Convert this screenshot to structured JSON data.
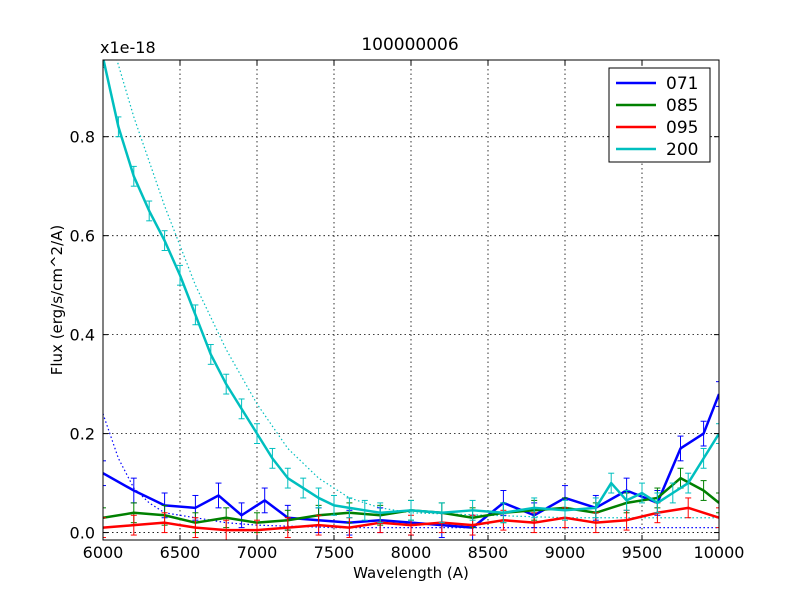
{
  "chart_data": {
    "type": "line",
    "title": "100000006",
    "xlabel": "Wavelength (A)",
    "ylabel": "Flux (erg/s/cm^2/A)",
    "y_offset_label": "x1e-18",
    "xlim": [
      6000,
      10000
    ],
    "ylim": [
      -0.015,
      0.955
    ],
    "grid": true,
    "legend_position": "top-right",
    "x_ticks": [
      6000,
      6500,
      7000,
      7500,
      8000,
      8500,
      9000,
      9500,
      10000
    ],
    "x_tick_labels": [
      "6000",
      "6500",
      "7000",
      "7500",
      "8000",
      "8500",
      "9000",
      "9500",
      "10000"
    ],
    "y_ticks": [
      0.0,
      0.2,
      0.4,
      0.6,
      0.8
    ],
    "y_tick_labels": [
      "0.0",
      "0.2",
      "0.4",
      "0.6",
      "0.8"
    ],
    "series": [
      {
        "name": "071",
        "color": "#0000ff",
        "x": [
          6000,
          6200,
          6400,
          6600,
          6750,
          6900,
          7050,
          7200,
          7400,
          7600,
          7800,
          8000,
          8200,
          8400,
          8600,
          8800,
          9000,
          9200,
          9400,
          9600,
          9750,
          9900,
          10000
        ],
        "y": [
          0.12,
          0.085,
          0.055,
          0.05,
          0.075,
          0.035,
          0.065,
          0.03,
          0.025,
          0.02,
          0.025,
          0.02,
          0.015,
          0.01,
          0.06,
          0.035,
          0.07,
          0.05,
          0.085,
          0.06,
          0.17,
          0.2,
          0.28
        ],
        "err": 0.025
      },
      {
        "name": "085",
        "color": "#008000",
        "x": [
          6000,
          6200,
          6400,
          6600,
          6800,
          7000,
          7200,
          7400,
          7600,
          7800,
          8000,
          8200,
          8400,
          8600,
          8800,
          9000,
          9200,
          9400,
          9600,
          9750,
          9900,
          10000
        ],
        "y": [
          0.03,
          0.04,
          0.035,
          0.02,
          0.03,
          0.02,
          0.025,
          0.035,
          0.04,
          0.035,
          0.045,
          0.04,
          0.03,
          0.04,
          0.045,
          0.05,
          0.04,
          0.06,
          0.07,
          0.11,
          0.085,
          0.06
        ],
        "err": 0.02
      },
      {
        "name": "095",
        "color": "#ff0000",
        "x": [
          6000,
          6200,
          6400,
          6600,
          6800,
          7000,
          7200,
          7400,
          7600,
          7800,
          8000,
          8200,
          8400,
          8600,
          8800,
          9000,
          9200,
          9400,
          9600,
          9800,
          10000
        ],
        "y": [
          0.01,
          0.015,
          0.02,
          0.01,
          0.005,
          0.005,
          0.01,
          0.015,
          0.01,
          0.02,
          0.015,
          0.02,
          0.015,
          0.025,
          0.02,
          0.03,
          0.02,
          0.025,
          0.04,
          0.05,
          0.03
        ],
        "err": 0.02
      },
      {
        "name": "200",
        "color": "#00bfbf",
        "x": [
          6000,
          6100,
          6200,
          6300,
          6400,
          6500,
          6600,
          6700,
          6800,
          6900,
          7000,
          7100,
          7200,
          7300,
          7400,
          7500,
          7600,
          7700,
          7800,
          8000,
          8200,
          8400,
          8600,
          8800,
          9000,
          9200,
          9300,
          9400,
          9500,
          9600,
          9700,
          9800,
          9900,
          10000
        ],
        "y": [
          0.96,
          0.82,
          0.72,
          0.65,
          0.59,
          0.52,
          0.44,
          0.36,
          0.3,
          0.25,
          0.2,
          0.15,
          0.11,
          0.09,
          0.07,
          0.055,
          0.05,
          0.045,
          0.04,
          0.045,
          0.04,
          0.045,
          0.04,
          0.05,
          0.045,
          0.05,
          0.1,
          0.065,
          0.08,
          0.06,
          0.08,
          0.1,
          0.15,
          0.2
        ],
        "err": 0.02
      }
    ],
    "model_curves": [
      {
        "color": "#00bfbf",
        "x": [
          6000,
          6200,
          6400,
          6600,
          6800,
          7000,
          7200,
          7400,
          7600,
          7800,
          8000,
          8500,
          9000,
          9500,
          10000
        ],
        "y": [
          1.05,
          0.84,
          0.66,
          0.5,
          0.37,
          0.26,
          0.17,
          0.11,
          0.07,
          0.05,
          0.04,
          0.035,
          0.03,
          0.03,
          0.03
        ]
      },
      {
        "color": "#0000ff",
        "x": [
          6000,
          6100,
          6200,
          6300,
          6400,
          6600,
          6800,
          7000,
          7500,
          8000,
          9000,
          10000
        ],
        "y": [
          0.24,
          0.15,
          0.09,
          0.06,
          0.04,
          0.03,
          0.02,
          0.015,
          0.01,
          0.01,
          0.01,
          0.01
        ]
      }
    ]
  }
}
